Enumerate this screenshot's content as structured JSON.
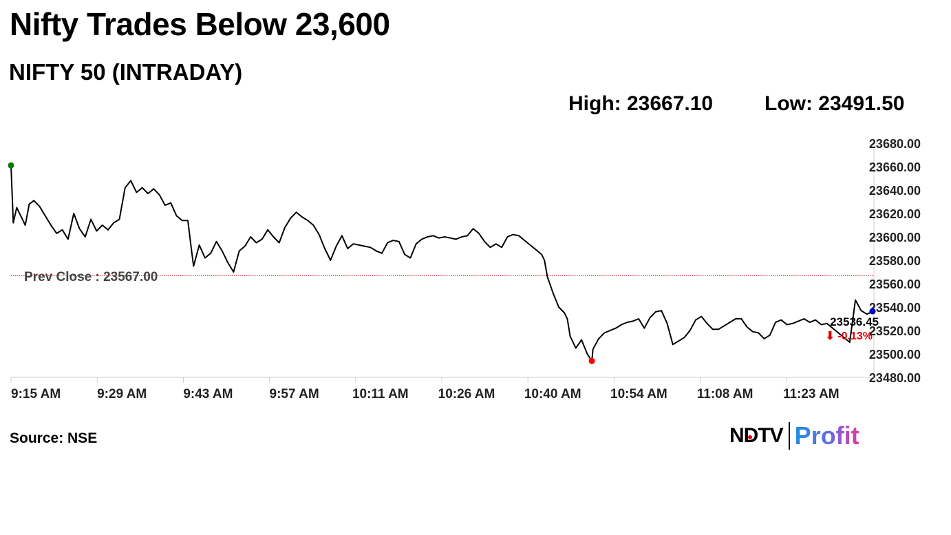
{
  "headline": "Nifty Trades Below 23,600",
  "subtitle": "NIFTY 50 (INTRADAY)",
  "stats": {
    "high": "High: 23667.10",
    "low": "Low: 23491.50"
  },
  "source": "Source: NSE",
  "logo": {
    "ndtv": "NDTV",
    "profit": "Profit"
  },
  "colors": {
    "line": "#000000",
    "open_marker": "#008000",
    "low_marker": "#ff0000",
    "last_marker": "#0000cc",
    "prev_close_line": "#cc0000",
    "change_text": "#e00000"
  },
  "chart_data": {
    "type": "line",
    "title": "NIFTY 50 (INTRADAY)",
    "xlabel": "",
    "ylabel": "",
    "x_ticks": [
      "9:15 AM",
      "9:29 AM",
      "9:43 AM",
      "9:57 AM",
      "10:11 AM",
      "10:26 AM",
      "10:40 AM",
      "10:54 AM",
      "11:08 AM",
      "11:23 AM"
    ],
    "y_ticks": [
      "23680.00",
      "23660.00",
      "23640.00",
      "23620.00",
      "23600.00",
      "23580.00",
      "23560.00",
      "23540.00",
      "23520.00",
      "23500.00",
      "23480.00"
    ],
    "ylim": [
      23480,
      23680
    ],
    "x_unit": "minutes after 9:15 AM",
    "xlim": [
      0,
      151
    ],
    "grid": false,
    "prev_close": {
      "label": "Prev Close : 23567.00",
      "value": 23567.0
    },
    "last": {
      "price": "23536.45",
      "change": "⬇ -0.13%",
      "value": 23536.45
    },
    "series": [
      {
        "points": [
          [
            0,
            23661
          ],
          [
            0.4,
            23612
          ],
          [
            1,
            23625
          ],
          [
            1.8,
            23617
          ],
          [
            2.5,
            23610
          ],
          [
            3.2,
            23628
          ],
          [
            4,
            23631
          ],
          [
            5,
            23626
          ],
          [
            6,
            23618
          ],
          [
            7,
            23610
          ],
          [
            8,
            23603
          ],
          [
            9,
            23606
          ],
          [
            10,
            23598
          ],
          [
            11,
            23620
          ],
          [
            12,
            23607
          ],
          [
            13,
            23600
          ],
          [
            14,
            23615
          ],
          [
            15,
            23605
          ],
          [
            16,
            23610
          ],
          [
            17,
            23606
          ],
          [
            18,
            23612
          ],
          [
            19,
            23615
          ],
          [
            20,
            23642
          ],
          [
            21,
            23648
          ],
          [
            22,
            23638
          ],
          [
            23,
            23642
          ],
          [
            24,
            23637
          ],
          [
            25,
            23641
          ],
          [
            26,
            23636
          ],
          [
            27,
            23627
          ],
          [
            28,
            23629
          ],
          [
            29,
            23618
          ],
          [
            30,
            23614
          ],
          [
            31,
            23614
          ],
          [
            31.6,
            23590
          ],
          [
            32,
            23575
          ],
          [
            33,
            23593
          ],
          [
            34,
            23582
          ],
          [
            35,
            23586
          ],
          [
            36,
            23596
          ],
          [
            37,
            23588
          ],
          [
            38,
            23578
          ],
          [
            39,
            23570
          ],
          [
            40,
            23588
          ],
          [
            41,
            23592
          ],
          [
            42,
            23600
          ],
          [
            43,
            23595
          ],
          [
            44,
            23598
          ],
          [
            45,
            23606
          ],
          [
            46,
            23600
          ],
          [
            47,
            23595
          ],
          [
            48,
            23608
          ],
          [
            49,
            23616
          ],
          [
            50,
            23621
          ],
          [
            51,
            23617
          ],
          [
            52,
            23614
          ],
          [
            53,
            23610
          ],
          [
            54,
            23602
          ],
          [
            55,
            23590
          ],
          [
            56,
            23580
          ],
          [
            57,
            23592
          ],
          [
            58,
            23601
          ],
          [
            59,
            23590
          ],
          [
            60,
            23594
          ],
          [
            61,
            23593
          ],
          [
            62,
            23592
          ],
          [
            63,
            23591
          ],
          [
            64,
            23588
          ],
          [
            65,
            23586
          ],
          [
            66,
            23595
          ],
          [
            67,
            23597
          ],
          [
            68,
            23596
          ],
          [
            69,
            23585
          ],
          [
            70,
            23582
          ],
          [
            71,
            23594
          ],
          [
            72,
            23598
          ],
          [
            73,
            23600
          ],
          [
            74,
            23601
          ],
          [
            75,
            23599
          ],
          [
            76,
            23600
          ],
          [
            77,
            23599
          ],
          [
            78,
            23598
          ],
          [
            79,
            23600
          ],
          [
            80,
            23601
          ],
          [
            81,
            23607
          ],
          [
            82,
            23603
          ],
          [
            83,
            23596
          ],
          [
            84,
            23591
          ],
          [
            85,
            23594
          ],
          [
            86,
            23591
          ],
          [
            87,
            23600
          ],
          [
            88,
            23602
          ],
          [
            89,
            23601
          ],
          [
            90,
            23597
          ],
          [
            91,
            23593
          ],
          [
            92,
            23589
          ],
          [
            93,
            23585
          ],
          [
            93.5,
            23580
          ],
          [
            94,
            23566
          ],
          [
            95,
            23552
          ],
          [
            96,
            23540
          ],
          [
            97,
            23535
          ],
          [
            97.5,
            23530
          ],
          [
            98,
            23515
          ],
          [
            99,
            23505
          ],
          [
            100,
            23512
          ],
          [
            101,
            23500
          ],
          [
            101.8,
            23494
          ],
          [
            102,
            23504
          ],
          [
            103,
            23513
          ],
          [
            104,
            23518
          ],
          [
            105,
            23520
          ],
          [
            106,
            23522
          ],
          [
            107,
            23525
          ],
          [
            108,
            23527
          ],
          [
            109,
            23528
          ],
          [
            110,
            23530
          ],
          [
            111,
            23522
          ],
          [
            112,
            23531
          ],
          [
            113,
            23536
          ],
          [
            114,
            23537
          ],
          [
            115,
            23526
          ],
          [
            116,
            23508
          ],
          [
            117,
            23511
          ],
          [
            118,
            23514
          ],
          [
            119,
            23520
          ],
          [
            120,
            23529
          ],
          [
            121,
            23532
          ],
          [
            122,
            23526
          ],
          [
            123,
            23521
          ],
          [
            124,
            23521
          ],
          [
            125,
            23524
          ],
          [
            126,
            23527
          ],
          [
            127,
            23530
          ],
          [
            128,
            23530
          ],
          [
            129,
            23523
          ],
          [
            130,
            23519
          ],
          [
            131,
            23518
          ],
          [
            132,
            23513
          ],
          [
            133,
            23516
          ],
          [
            134,
            23527
          ],
          [
            135,
            23529
          ],
          [
            136,
            23525
          ],
          [
            137,
            23526
          ],
          [
            138,
            23528
          ],
          [
            139,
            23530
          ],
          [
            140,
            23527
          ],
          [
            141,
            23529
          ],
          [
            142,
            23525
          ],
          [
            143,
            23526
          ],
          [
            147,
            23510
          ],
          [
            148,
            23546
          ],
          [
            149,
            23537
          ],
          [
            150,
            23534
          ],
          [
            151,
            23536
          ]
        ]
      }
    ],
    "markers": [
      {
        "role": "open",
        "x": 0,
        "y": 23661
      },
      {
        "role": "low",
        "x": 101.8,
        "y": 23494
      },
      {
        "role": "last",
        "x": 151,
        "y": 23536.45
      }
    ]
  }
}
